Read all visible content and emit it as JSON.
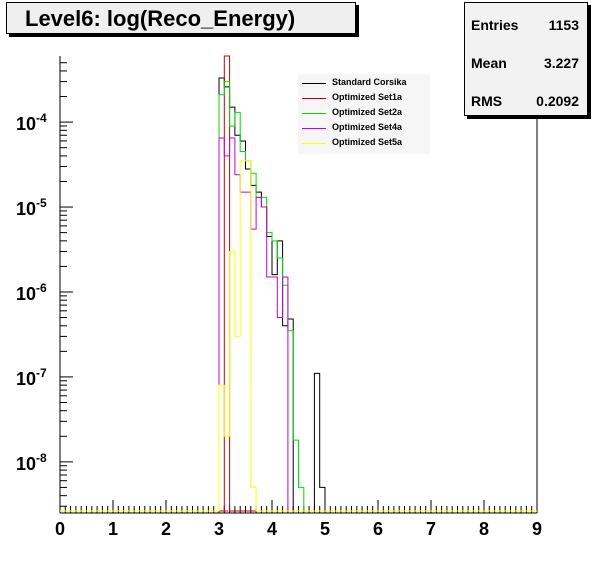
{
  "title": "Level6:  log(Reco_Energy)",
  "stats": [
    {
      "label": "Entries",
      "value": "1153"
    },
    {
      "label": "Mean",
      "value": "3.227"
    },
    {
      "label": "RMS",
      "value": "0.2092"
    }
  ],
  "chart_data": {
    "type": "line",
    "title": "Level6:  log(Reco_Energy)",
    "xlabel": "",
    "ylabel": "",
    "log_y": true,
    "xlim": [
      0,
      9
    ],
    "ylim": [
      2.5e-09,
      0.0006
    ],
    "bin_width": 0.1,
    "x_ticks": [
      "0",
      "1",
      "2",
      "3",
      "4",
      "5",
      "6",
      "7",
      "8",
      "9"
    ],
    "y_ticks": [
      {
        "value": 0.0001,
        "mantissa": "10",
        "exp": "-4"
      },
      {
        "value": 1e-05,
        "mantissa": "10",
        "exp": "-5"
      },
      {
        "value": 1e-06,
        "mantissa": "10",
        "exp": "-6"
      },
      {
        "value": 1e-07,
        "mantissa": "10",
        "exp": "-7"
      },
      {
        "value": 1e-08,
        "mantissa": "10",
        "exp": "-8"
      }
    ],
    "legend_position": "top-right",
    "series": [
      {
        "name": "Standard Corsika",
        "color": "#000000",
        "bins": [
          [
            3.0,
            0.00033
          ],
          [
            3.1,
            0.00026
          ],
          [
            3.2,
            0.00015
          ],
          [
            3.3,
            7e-05
          ],
          [
            3.4,
            6e-05
          ],
          [
            3.5,
            2.8e-05
          ],
          [
            3.6,
            1.8e-05
          ],
          [
            3.7,
            1.5e-05
          ],
          [
            3.8,
            1e-05
          ],
          [
            3.9,
            4.5e-06
          ],
          [
            4.0,
            1.6e-06
          ],
          [
            4.1,
            4e-06
          ],
          [
            4.2,
            4e-07
          ],
          [
            4.3,
            4.8e-07
          ],
          [
            4.4,
            2.5e-09
          ],
          [
            4.5,
            2.5e-09
          ],
          [
            4.6,
            2.5e-09
          ],
          [
            4.7,
            2.5e-09
          ],
          [
            4.8,
            1.1e-07
          ],
          [
            4.9,
            5e-09
          ]
        ]
      },
      {
        "name": "Optimized Set1a",
        "color": "#cc0000",
        "bins": [
          [
            3.0,
            2.5e-09
          ],
          [
            3.1,
            0.0006
          ],
          [
            3.2,
            2.5e-09
          ]
        ]
      },
      {
        "name": "Optimized Set2a",
        "color": "#00dd00",
        "bins": [
          [
            3.0,
            0.00021
          ],
          [
            3.1,
            0.0003
          ],
          [
            3.2,
            9e-05
          ],
          [
            3.3,
            0.00013
          ],
          [
            3.4,
            4.5e-05
          ],
          [
            3.5,
            3.5e-05
          ],
          [
            3.6,
            2.5e-05
          ],
          [
            3.7,
            1.3e-05
          ],
          [
            3.8,
            1.3e-05
          ],
          [
            3.9,
            5e-06
          ],
          [
            4.0,
            4e-06
          ],
          [
            4.1,
            2.5e-06
          ],
          [
            4.2,
            1.2e-06
          ],
          [
            4.3,
            3.5e-07
          ],
          [
            4.4,
            1.8e-08
          ],
          [
            4.5,
            5e-09
          ]
        ]
      },
      {
        "name": "Optimized Set4a",
        "color": "#cc00cc",
        "bins": [
          [
            3.0,
            6.5e-05
          ],
          [
            3.1,
            4e-05
          ],
          [
            3.2,
            6.5e-05
          ],
          [
            3.3,
            2.4e-05
          ],
          [
            3.4,
            1.5e-05
          ],
          [
            3.5,
            1.5e-05
          ],
          [
            3.6,
            5.5e-06
          ],
          [
            3.7,
            1.3e-05
          ],
          [
            3.8,
            1e-05
          ],
          [
            3.9,
            1.5e-06
          ],
          [
            4.0,
            1.5e-06
          ],
          [
            4.1,
            5e-07
          ],
          [
            4.2,
            1.5e-06
          ],
          [
            4.3,
            2.5e-09
          ]
        ]
      },
      {
        "name": "Optimized Set5a",
        "color": "#ffff00",
        "bins": [
          [
            3.0,
            8e-08
          ],
          [
            3.1,
            2e-08
          ],
          [
            3.2,
            3e-06
          ],
          [
            3.3,
            3e-07
          ],
          [
            3.4,
            3.5e-05
          ],
          [
            3.5,
            3.5e-05
          ],
          [
            3.6,
            5e-09
          ],
          [
            3.7,
            2.5e-09
          ]
        ]
      }
    ]
  }
}
